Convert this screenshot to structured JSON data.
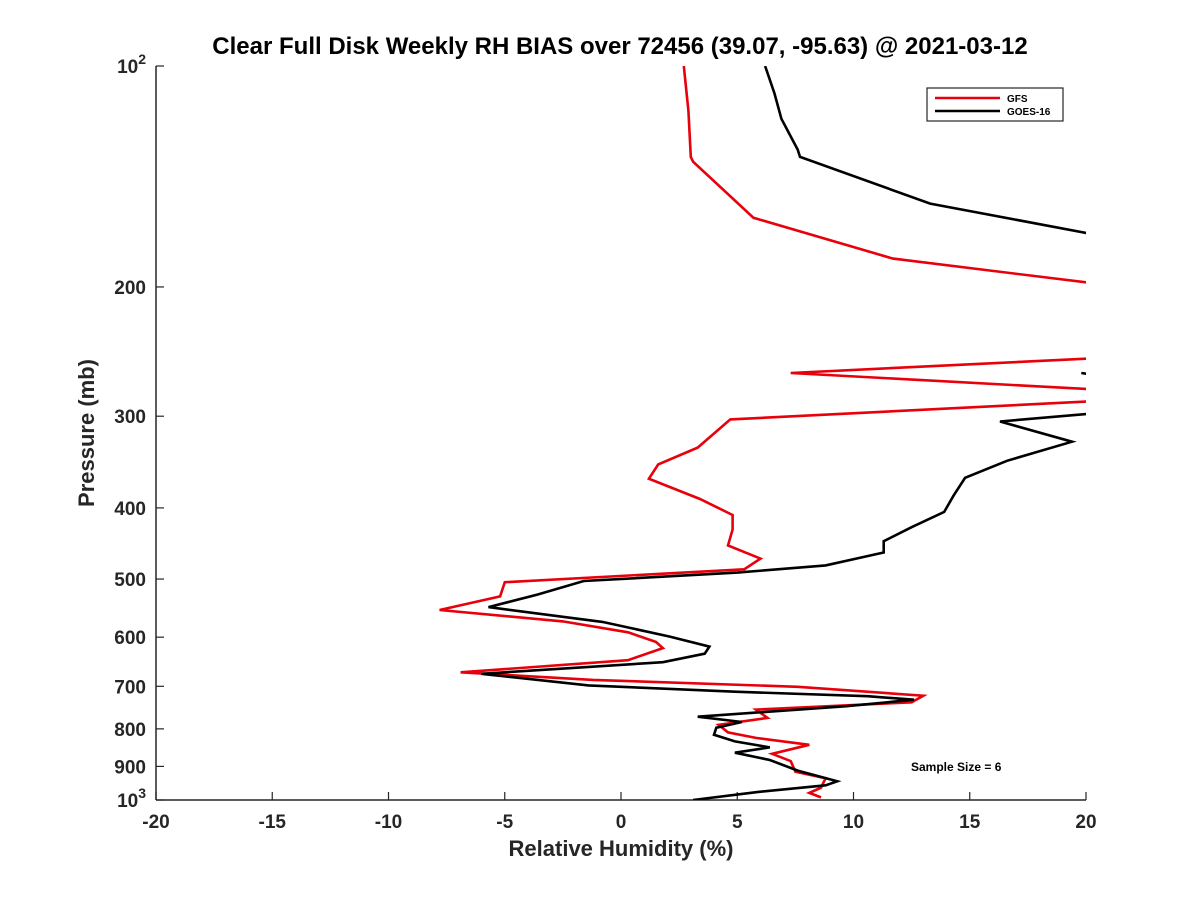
{
  "chart_data": {
    "type": "line",
    "title": "Clear Full Disk Weekly RH BIAS over 72456 (39.07, -95.63) @ 2021-03-12",
    "xlabel": "Relative Humidity (%)",
    "ylabel": "Pressure (mb)",
    "xlim": [
      -20,
      20
    ],
    "ylim": [
      100,
      1000
    ],
    "yscale": "log",
    "yreversed": true,
    "x_ticks": [
      -20,
      -15,
      -10,
      -5,
      0,
      5,
      10,
      15,
      20
    ],
    "x_tick_labels": [
      "-20",
      "-15",
      "-10",
      "-5",
      "0",
      "5",
      "10",
      "15",
      "20"
    ],
    "y_ticks": [
      100,
      200,
      300,
      400,
      500,
      600,
      700,
      800,
      900,
      1000
    ],
    "y_tick_labels": [
      {
        "base": "10",
        "exp": "2"
      },
      {
        "base": "200",
        "exp": ""
      },
      {
        "base": "300",
        "exp": ""
      },
      {
        "base": "400",
        "exp": ""
      },
      {
        "base": "500",
        "exp": ""
      },
      {
        "base": "600",
        "exp": ""
      },
      {
        "base": "700",
        "exp": ""
      },
      {
        "base": "800",
        "exp": ""
      },
      {
        "base": "900",
        "exp": ""
      },
      {
        "base": "10",
        "exp": "3"
      }
    ],
    "legend_location": "top-right",
    "series": [
      {
        "name": "GFS",
        "color": "#e8000b",
        "points": [
          [
            2.7,
            100
          ],
          [
            2.9,
            115
          ],
          [
            3.0,
            133
          ],
          [
            3.1,
            135
          ],
          [
            5.7,
            161
          ],
          [
            11.7,
            183
          ],
          [
            20.5,
            198
          ],
          [
            null,
            null
          ],
          [
            20.5,
            250
          ],
          [
            7.3,
            262
          ],
          [
            20.5,
            276
          ],
          [
            null,
            null
          ],
          [
            20.5,
            286
          ],
          [
            4.7,
            303
          ],
          [
            3.3,
            331
          ],
          [
            1.6,
            349
          ],
          [
            1.2,
            365
          ],
          [
            3.4,
            389
          ],
          [
            4.8,
            409
          ],
          [
            4.8,
            428
          ],
          [
            4.6,
            450
          ],
          [
            6.0,
            469
          ],
          [
            5.3,
            485
          ],
          [
            -5.0,
            505
          ],
          [
            -5.2,
            528
          ],
          [
            -7.8,
            551
          ],
          [
            -2.5,
            571
          ],
          [
            0.3,
            591
          ],
          [
            1.5,
            609
          ],
          [
            1.8,
            621
          ],
          [
            0.3,
            645
          ],
          [
            -6.9,
            670
          ],
          [
            -1.2,
            686
          ],
          [
            7.6,
            701
          ],
          [
            13.0,
            721
          ],
          [
            12.5,
            736
          ],
          [
            5.8,
            753
          ],
          [
            6.3,
            773
          ],
          [
            4.2,
            790
          ],
          [
            4.6,
            809
          ],
          [
            5.8,
            823
          ],
          [
            8.1,
            841
          ],
          [
            6.5,
            865
          ],
          [
            7.3,
            885
          ],
          [
            7.5,
            915
          ],
          [
            8.8,
            934
          ],
          [
            8.6,
            962
          ],
          [
            8.1,
            978
          ],
          [
            8.6,
            992
          ]
        ]
      },
      {
        "name": "GOES-16",
        "color": "#000000",
        "points": [
          [
            6.2,
            100
          ],
          [
            6.6,
            109
          ],
          [
            6.9,
            118
          ],
          [
            7.6,
            130
          ],
          [
            7.7,
            133
          ],
          [
            13.3,
            154
          ],
          [
            20.5,
            170
          ],
          [
            null,
            null
          ],
          [
            19.8,
            262
          ],
          [
            20.5,
            264
          ],
          [
            null,
            null
          ],
          [
            20.5,
            297
          ],
          [
            16.3,
            305
          ],
          [
            19.4,
            325
          ],
          [
            16.6,
            345
          ],
          [
            14.8,
            364
          ],
          [
            14.3,
            385
          ],
          [
            13.9,
            405
          ],
          [
            12.5,
            425
          ],
          [
            11.3,
            444
          ],
          [
            11.3,
            460
          ],
          [
            8.8,
            479
          ],
          [
            5.0,
            490
          ],
          [
            -1.6,
            503
          ],
          [
            -3.6,
            525
          ],
          [
            -5.7,
            546
          ],
          [
            -0.8,
            572
          ],
          [
            2.1,
            599
          ],
          [
            3.8,
            618
          ],
          [
            3.6,
            632
          ],
          [
            1.8,
            649
          ],
          [
            -6.0,
            673
          ],
          [
            -1.4,
            698
          ],
          [
            4.9,
            712
          ],
          [
            10.6,
            722
          ],
          [
            12.6,
            730
          ],
          [
            9.7,
            745
          ],
          [
            3.3,
            770
          ],
          [
            5.2,
            783
          ],
          [
            4.1,
            797
          ],
          [
            4.0,
            815
          ],
          [
            4.9,
            832
          ],
          [
            6.4,
            848
          ],
          [
            4.9,
            862
          ],
          [
            6.4,
            882
          ],
          [
            7.6,
            912
          ],
          [
            9.3,
            943
          ],
          [
            8.8,
            955
          ],
          [
            5.9,
            975
          ],
          [
            3.1,
            1000
          ]
        ]
      }
    ],
    "annotations": [
      "Sample Size = 6"
    ]
  }
}
